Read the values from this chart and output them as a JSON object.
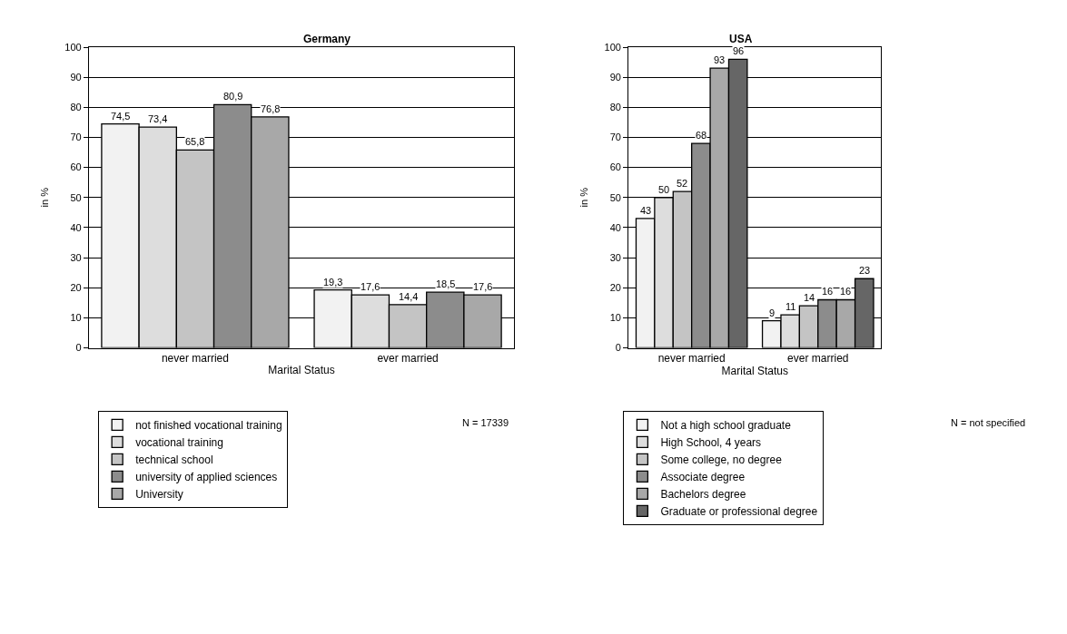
{
  "chart_data": [
    {
      "type": "bar",
      "title": "Germany",
      "xlabel": "Marital Status",
      "ylabel": "in %",
      "categories": [
        "never married",
        "ever married"
      ],
      "series": [
        {
          "name": "not finished vocational training",
          "color": "#f2f2f2",
          "values": [
            74.5,
            19.3
          ],
          "value_labels": [
            "74,5",
            "19,3"
          ]
        },
        {
          "name": "vocational training",
          "color": "#dddddd",
          "values": [
            73.4,
            17.6
          ],
          "value_labels": [
            "73,4",
            "17,6"
          ]
        },
        {
          "name": "technical school",
          "color": "#c4c4c4",
          "values": [
            65.8,
            14.4
          ],
          "value_labels": [
            "65,8",
            "14,4"
          ]
        },
        {
          "name": "university of applied sciences",
          "color": "#8c8c8c",
          "values": [
            80.9,
            18.5
          ],
          "value_labels": [
            "80,9",
            "18,5"
          ]
        },
        {
          "name": "University",
          "color": "#a8a8a8",
          "values": [
            76.8,
            17.6
          ],
          "value_labels": [
            "76,8",
            "17,6"
          ]
        }
      ],
      "ylim": [
        0,
        100
      ],
      "yticks": [
        0,
        10,
        20,
        30,
        40,
        50,
        60,
        70,
        80,
        90,
        100
      ],
      "grid": "y",
      "legend": "bottom",
      "annotations": [
        "N = 17339"
      ]
    },
    {
      "type": "bar",
      "title": "USA",
      "xlabel": "Marital Status",
      "ylabel": "in %",
      "categories": [
        "never married",
        "ever married"
      ],
      "series": [
        {
          "name": "Not a high school graduate",
          "color": "#f2f2f2",
          "values": [
            43,
            9
          ]
        },
        {
          "name": "High School, 4 years",
          "color": "#dddddd",
          "values": [
            50,
            11
          ]
        },
        {
          "name": "Some college, no degree",
          "color": "#c4c4c4",
          "values": [
            52,
            14
          ]
        },
        {
          "name": "Associate degree",
          "color": "#8c8c8c",
          "values": [
            68,
            16
          ]
        },
        {
          "name": "Bachelors degree",
          "color": "#a8a8a8",
          "values": [
            93,
            16
          ]
        },
        {
          "name": "Graduate or professional degree",
          "color": "#666666",
          "values": [
            96,
            23
          ]
        }
      ],
      "ylim": [
        0,
        100
      ],
      "yticks": [
        0,
        10,
        20,
        30,
        40,
        50,
        60,
        70,
        80,
        90,
        100
      ],
      "grid": "y",
      "legend": "bottom",
      "data_labels": true,
      "annotations": [
        "N = not specified"
      ]
    }
  ]
}
